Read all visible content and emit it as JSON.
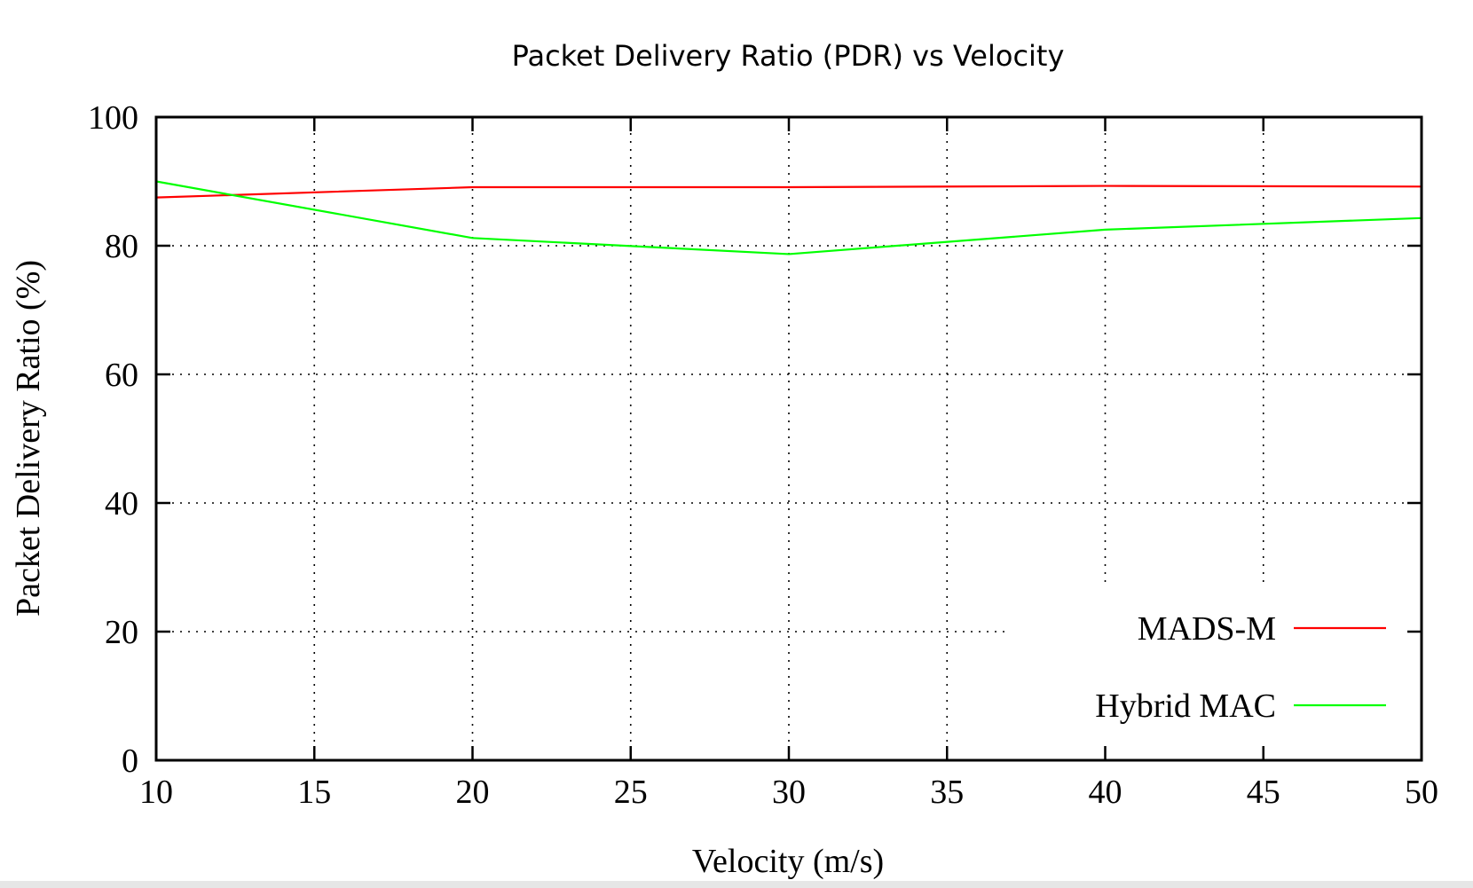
{
  "chart_data": {
    "type": "line",
    "title": "Packet Delivery Ratio (PDR) vs Velocity",
    "xlabel": "Velocity (m/s)",
    "ylabel": "Packet Delivery Ratio (%)",
    "xlim": [
      10,
      50
    ],
    "ylim": [
      0,
      100
    ],
    "xticks": [
      10,
      15,
      20,
      25,
      30,
      35,
      40,
      45,
      50
    ],
    "yticks": [
      0,
      20,
      40,
      60,
      80,
      100
    ],
    "grid": true,
    "legend_position": "bottom-right",
    "series": [
      {
        "name": "MADS-M",
        "color": "#ff0000",
        "x": [
          10,
          20,
          30,
          40,
          50
        ],
        "y": [
          87.5,
          89.1,
          89.1,
          89.3,
          89.2
        ]
      },
      {
        "name": "Hybrid MAC",
        "color": "#00ff00",
        "x": [
          10,
          20,
          30,
          40,
          50
        ],
        "y": [
          90.0,
          81.2,
          78.7,
          82.5,
          84.3
        ]
      }
    ]
  }
}
